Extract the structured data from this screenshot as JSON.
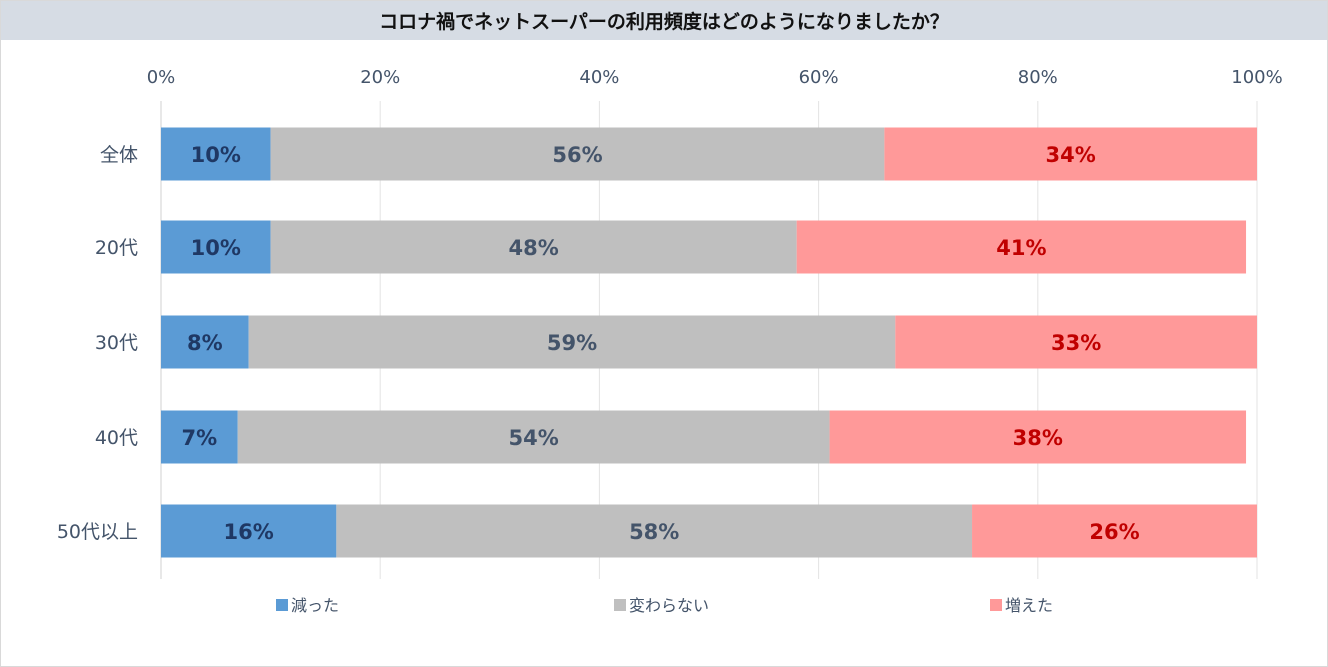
{
  "chart_data": {
    "type": "bar",
    "orientation": "horizontal",
    "stacked": true,
    "title": "コロナ禍でネットスーパーの利用頻度はどのようになりましたか？",
    "categories": [
      "全体",
      "20代",
      "30代",
      "40代",
      "50代以上"
    ],
    "xlim": [
      0,
      100
    ],
    "x_ticks": [
      0,
      20,
      40,
      60,
      80,
      100
    ],
    "x_tick_labels": [
      "0%",
      "20%",
      "40%",
      "60%",
      "80%",
      "100%"
    ],
    "xaxis_position": "top",
    "grid": true,
    "legend_position": "bottom",
    "series": [
      {
        "name": "減った",
        "color": "#5b9bd5",
        "label_color": "#1f3864",
        "values": [
          10,
          10,
          8,
          7,
          16
        ],
        "labels": [
          "10%",
          "10%",
          "8%",
          "7%",
          "16%"
        ]
      },
      {
        "name": "変わらない",
        "color": "#bfbfbf",
        "label_color": "#44546a",
        "values": [
          56,
          48,
          59,
          54,
          58
        ],
        "labels": [
          "56%",
          "48%",
          "59%",
          "54%",
          "58%"
        ]
      },
      {
        "name": "増えた",
        "color": "#ff9999",
        "label_color": "#c00000",
        "values": [
          34,
          41,
          33,
          38,
          26
        ],
        "labels": [
          "34%",
          "41%",
          "33%",
          "38%",
          "26%"
        ]
      }
    ]
  }
}
